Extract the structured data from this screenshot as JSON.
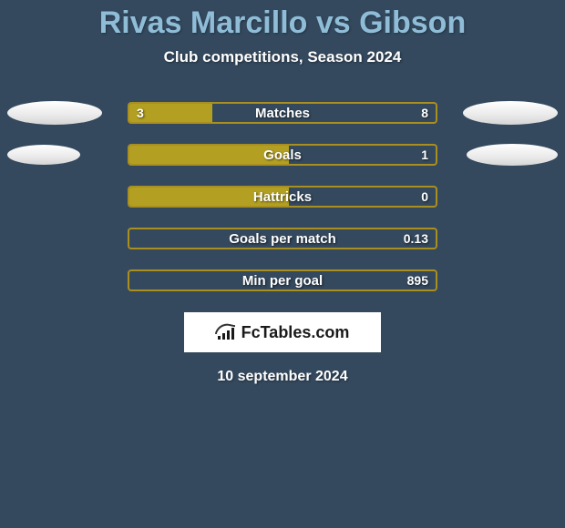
{
  "title": "Rivas Marcillo vs Gibson",
  "subtitle": "Club competitions, Season 2024",
  "date": "10 september 2024",
  "logo_text": "FcTables.com",
  "colors": {
    "background": "#34495e",
    "title": "#8fbdd8",
    "text": "#ffffff",
    "bar_fill": "#b3a022",
    "bar_border": "#a98f1f",
    "ellipse_light": "#ffffff",
    "ellipse_shade": "#d5d5d5",
    "logo_box_bg": "#ffffff",
    "logo_fg": "#1a1a1a"
  },
  "ellipses": {
    "row0": {
      "left_w": 104,
      "left_h": 26,
      "right_w": 104,
      "right_h": 26
    },
    "row1": {
      "left_w": 80,
      "left_h": 22,
      "right_w": 100,
      "right_h": 24
    }
  },
  "bars": {
    "track_width": 340,
    "track_height": 24,
    "border_radius": 4,
    "label_fontsize": 15,
    "value_fontsize": 14
  },
  "stats": [
    {
      "label": "Matches",
      "left_value": "3",
      "right_value": "8",
      "left_fill_pct": 27,
      "right_fill_pct": 0,
      "show_left_value": true
    },
    {
      "label": "Goals",
      "left_value": "",
      "right_value": "1",
      "left_fill_pct": 52,
      "right_fill_pct": 0,
      "show_left_value": false
    },
    {
      "label": "Hattricks",
      "left_value": "",
      "right_value": "0",
      "left_fill_pct": 52,
      "right_fill_pct": 0,
      "show_left_value": false
    },
    {
      "label": "Goals per match",
      "left_value": "",
      "right_value": "0.13",
      "left_fill_pct": 0,
      "right_fill_pct": 0,
      "show_left_value": false
    },
    {
      "label": "Min per goal",
      "left_value": "",
      "right_value": "895",
      "left_fill_pct": 0,
      "right_fill_pct": 0,
      "show_left_value": false
    }
  ]
}
